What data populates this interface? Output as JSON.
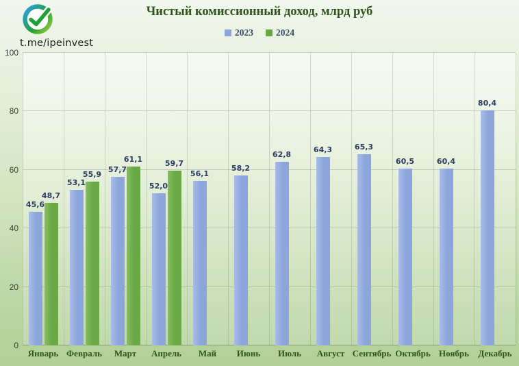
{
  "header": {
    "watermark": "t.me/ipeinvest",
    "title": "Чистый комиссионный доход, млрд руб"
  },
  "logo": {
    "name": "sber-logo",
    "check_color": "#21a038",
    "ring_gradient": [
      "#2aa0d8",
      "#21a038",
      "#9aca3e"
    ]
  },
  "colors": {
    "bar_2023": "#8ca6dc",
    "bar_2023_light": "#a8bce8",
    "bar_2024": "#69a844",
    "bar_2024_light": "#86bd60",
    "title_text": "#2f541d",
    "value_label_text": "#2d3c62",
    "background_top": "#f1f6ed",
    "background_bottom": "#b2d098"
  },
  "chart_data": {
    "type": "bar",
    "title": "Чистый комиссионный доход, млрд руб",
    "categories": [
      "Январь",
      "Февраль",
      "Март",
      "Апрель",
      "Май",
      "Июнь",
      "Июль",
      "Август",
      "Сентябрь",
      "Октябрь",
      "Ноябрь",
      "Декабрь"
    ],
    "series": [
      {
        "name": "2023",
        "color": "#8ca6dc",
        "color_light": "#a8bce8",
        "values": [
          45.6,
          53.1,
          57.7,
          52.0,
          56.1,
          58.2,
          62.8,
          64.3,
          65.3,
          60.5,
          60.4,
          80.4
        ]
      },
      {
        "name": "2024",
        "color": "#69a844",
        "color_light": "#86bd60",
        "values": [
          48.7,
          55.9,
          61.1,
          59.7,
          null,
          null,
          null,
          null,
          null,
          null,
          null,
          null
        ]
      }
    ],
    "value_labels": [
      "45,6",
      "53,1",
      "57,7",
      "52,0",
      "56,1",
      "58,2",
      "62,8",
      "64,3",
      "65,3",
      "60,5",
      "60,4",
      "80,4",
      "48,7",
      "55,9",
      "61,1",
      "59,7"
    ],
    "decimal_separator": ",",
    "xlabel": "",
    "ylabel": "",
    "ylim": [
      0,
      100
    ],
    "yticks": [
      0,
      20,
      40,
      60,
      80,
      100
    ],
    "grid": true,
    "legend_position": "top-center"
  }
}
